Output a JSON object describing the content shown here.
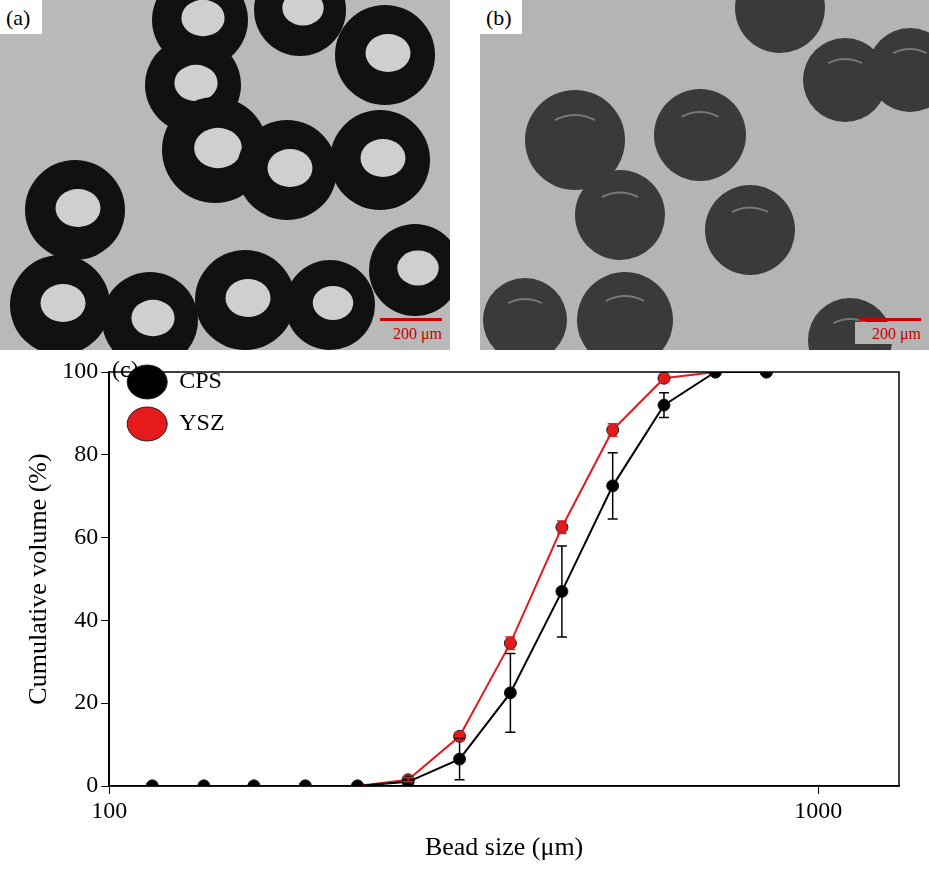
{
  "panels": [
    {
      "label": "(a)",
      "scale_bar": "200 μm"
    },
    {
      "label": "(b)",
      "scale_bar": "200 μm"
    }
  ],
  "chart_data": {
    "type": "line",
    "label": "(c)",
    "x_label": "Bead size (μm)",
    "y_label": "Cumulative volume (%)",
    "x": [
      115,
      136,
      160,
      189,
      224,
      264,
      312,
      368,
      435,
      513,
      606,
      716,
      845
    ],
    "series": [
      {
        "name": "CPS",
        "color": "#000000",
        "marker": "circle",
        "line_style": "solid",
        "values": [
          0,
          0,
          0,
          0,
          0,
          1,
          6.5,
          22.5,
          47,
          72.5,
          92,
          100,
          100
        ],
        "errors": [
          0,
          0,
          0,
          0,
          0,
          0.5,
          5,
          9.5,
          11,
          8,
          3,
          0,
          0
        ]
      },
      {
        "name": "YSZ",
        "color": "#e41a1c",
        "marker": "circle",
        "line_style": "solid",
        "values": [
          0,
          0,
          0,
          0,
          0,
          1.5,
          12,
          34.5,
          62.5,
          86,
          98.5,
          100,
          100
        ],
        "errors": [
          0,
          0,
          0,
          0,
          0,
          0.5,
          1,
          1.5,
          1.5,
          1.5,
          1,
          0,
          0
        ]
      }
    ],
    "log": "x",
    "xlim": [
      100,
      1300
    ],
    "xticks": [
      100,
      1000
    ],
    "ylim": [
      0,
      100
    ],
    "yticks": [
      0,
      20,
      40,
      60,
      80,
      100
    ],
    "grid": false,
    "legend": "upper left"
  }
}
